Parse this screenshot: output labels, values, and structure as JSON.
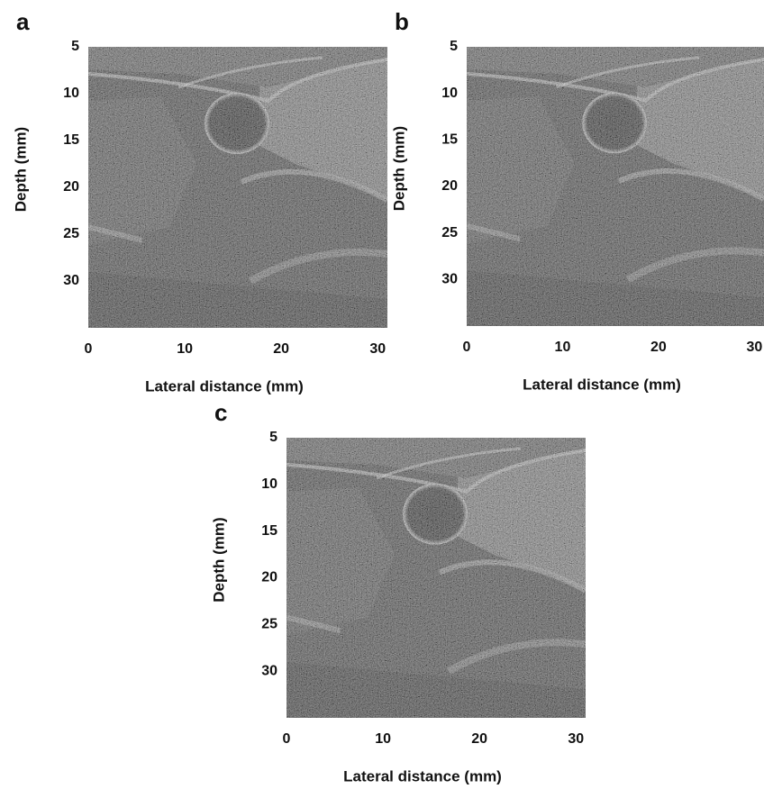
{
  "panels": [
    {
      "label": "a",
      "x_label": "Lateral distance (mm)",
      "y_label": "Depth (mm)",
      "xlim": [
        0,
        31
      ],
      "ylim": [
        5,
        35
      ],
      "xticks": [
        0,
        10,
        20,
        30
      ],
      "yticks": [
        5,
        10,
        15,
        20,
        25,
        30
      ]
    },
    {
      "label": "b",
      "x_label": "Lateral distance (mm)",
      "y_label": "Depth (mm)",
      "xlim": [
        0,
        31
      ],
      "ylim": [
        5,
        35
      ],
      "xticks": [
        0,
        10,
        20,
        30
      ],
      "yticks": [
        5,
        10,
        15,
        20,
        25,
        30
      ]
    },
    {
      "label": "c",
      "x_label": "Lateral distance (mm)",
      "y_label": "Depth (mm)",
      "xlim": [
        0,
        31
      ],
      "ylim": [
        5,
        35
      ],
      "xticks": [
        0,
        10,
        20,
        30
      ],
      "yticks": [
        5,
        10,
        15,
        20,
        25,
        30
      ]
    }
  ]
}
